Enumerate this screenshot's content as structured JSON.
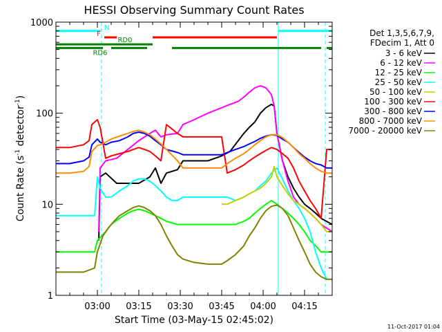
{
  "chart_data": {
    "type": "line",
    "title": "HESSI Observing Summary Count Rates",
    "xlabel": "Start Time (03-May-15 02:45:02)",
    "ylabel_main": "Count Rate (s",
    "ylabel_sup1": "-1",
    "ylabel_mid": " detector",
    "ylabel_sup2": "-1",
    "ylabel_end": ")",
    "y_scale": "log",
    "ylim": [
      1,
      1000
    ],
    "xlim_minutes": [
      0,
      100
    ],
    "x_ticks": [
      {
        "t": 15,
        "label": "03:00"
      },
      {
        "t": 30,
        "label": "03:15"
      },
      {
        "t": 45,
        "label": "03:30"
      },
      {
        "t": 60,
        "label": "03:45"
      },
      {
        "t": 75,
        "label": "04:00"
      },
      {
        "t": 90,
        "label": "04:15"
      }
    ],
    "y_ticks": [
      {
        "v": 1,
        "label": "1"
      },
      {
        "v": 10,
        "label": "10"
      },
      {
        "v": 100,
        "label": "100"
      },
      {
        "v": 1000,
        "label": "1000"
      }
    ],
    "legend_header": [
      "Det 1,3,5,6,7,9,",
      "FDecim 1, Att 0"
    ],
    "series": [
      {
        "name": "3 - 6 keV",
        "color": "#000000",
        "x": [
          0,
          15,
          15.5,
          16,
          18,
          22,
          30,
          34,
          36,
          38,
          40,
          44,
          46,
          50,
          55,
          60,
          63,
          66,
          68,
          70,
          72,
          74,
          76,
          78,
          79,
          80,
          82,
          84,
          86,
          88,
          90,
          92,
          94,
          96,
          100
        ],
        "y": [
          null,
          null,
          4,
          20,
          22,
          17,
          17,
          20,
          25,
          17,
          22,
          24,
          30,
          30,
          30,
          34,
          38,
          50,
          60,
          70,
          80,
          100,
          115,
          125,
          120,
          60,
          30,
          20,
          15,
          12,
          10,
          9,
          8,
          7,
          6
        ]
      },
      {
        "name": "6 - 12 keV",
        "color": "#ff00ff",
        "x": [
          0,
          15,
          15.5,
          16,
          18,
          22,
          30,
          34,
          36,
          38,
          40,
          44,
          46,
          50,
          55,
          60,
          63,
          66,
          68,
          70,
          72,
          74,
          76,
          78,
          79,
          80,
          82,
          84,
          86,
          88,
          90,
          92,
          94,
          96,
          100
        ],
        "y": [
          null,
          null,
          5,
          25,
          30,
          32,
          50,
          60,
          65,
          55,
          58,
          60,
          75,
          85,
          100,
          115,
          125,
          135,
          150,
          170,
          190,
          200,
          190,
          160,
          120,
          60,
          30,
          18,
          12,
          10,
          9,
          8,
          7,
          6,
          5
        ]
      },
      {
        "name": "12 - 25 keV",
        "color": "#00ff00",
        "x": [
          0,
          10,
          14,
          15,
          18,
          20,
          23,
          26,
          28,
          30,
          32,
          34,
          36,
          38,
          40,
          44,
          46,
          50,
          55,
          60,
          62,
          65,
          68,
          70,
          72,
          74,
          76,
          78,
          80,
          82,
          84,
          86,
          88,
          90,
          92,
          94,
          96,
          98,
          100
        ],
        "y": [
          3,
          3,
          3,
          4,
          5,
          6,
          7,
          8,
          8.5,
          8.8,
          8.5,
          8,
          7.5,
          7,
          6.5,
          6,
          6,
          6,
          6,
          6,
          6,
          6,
          6.5,
          7,
          8,
          9,
          10,
          11,
          10,
          9,
          8,
          7,
          6,
          5,
          4,
          3.5,
          3,
          3,
          3
        ]
      },
      {
        "name": "25 - 50 keV",
        "color": "#00ffff",
        "x": [
          0,
          5,
          10,
          14,
          15,
          16,
          18,
          20,
          23,
          26,
          28,
          30,
          32,
          34,
          36,
          38,
          40,
          42,
          44,
          46,
          50,
          55,
          60,
          62,
          65,
          68,
          70,
          72,
          74,
          76,
          78,
          80,
          82,
          84,
          86,
          88,
          90,
          92,
          94,
          96,
          98,
          100
        ],
        "y": [
          7.5,
          7.5,
          7.5,
          7.5,
          20,
          15,
          12,
          12,
          14,
          16,
          18,
          19,
          19,
          18,
          16,
          14,
          12,
          11,
          11,
          12,
          12,
          12,
          12,
          12,
          11,
          12,
          13,
          14,
          16,
          18,
          22,
          25,
          19,
          14,
          11,
          9,
          7,
          5,
          3,
          2,
          1.5,
          1.5
        ]
      },
      {
        "name": "50 - 100 keV",
        "color": "#cccc00",
        "x": [
          60,
          62,
          65,
          68,
          70,
          72,
          74,
          76,
          78,
          79,
          80,
          82,
          84,
          86,
          88,
          90,
          92,
          94,
          96,
          98,
          100
        ],
        "y": [
          10,
          10,
          11,
          12,
          13,
          14,
          15,
          17,
          20,
          26,
          20,
          16,
          13,
          11,
          10,
          9,
          8,
          7,
          6,
          5,
          5
        ]
      },
      {
        "name": "100 - 300 keV",
        "color": "#ff0000",
        "x": [
          0,
          5,
          10,
          12,
          13,
          15,
          16,
          18,
          20,
          23,
          26,
          28,
          30,
          32,
          34,
          36,
          38,
          40,
          44,
          46,
          50,
          55,
          60,
          62,
          65,
          68,
          70,
          72,
          74,
          76,
          78,
          80,
          82,
          84,
          86,
          88,
          90,
          92,
          94,
          96,
          98,
          100
        ],
        "y": [
          42,
          42,
          45,
          50,
          75,
          85,
          70,
          32,
          34,
          36,
          38,
          40,
          42,
          40,
          38,
          34,
          30,
          75,
          60,
          55,
          55,
          55,
          55,
          22,
          24,
          27,
          30,
          33,
          36,
          39,
          42,
          40,
          36,
          32,
          25,
          18,
          14,
          11,
          9,
          7,
          40,
          40
        ]
      },
      {
        "name": "300 - 800 keV",
        "color": "#0000ff",
        "x": [
          0,
          5,
          10,
          12,
          13,
          15,
          16,
          18,
          20,
          23,
          26,
          28,
          30,
          32,
          34,
          36,
          38,
          40,
          44,
          46,
          50,
          55,
          60,
          62,
          65,
          68,
          70,
          72,
          74,
          76,
          78,
          80,
          82,
          84,
          86,
          88,
          90,
          92,
          94,
          96,
          98,
          100
        ],
        "y": [
          28,
          28,
          30,
          33,
          45,
          52,
          48,
          45,
          48,
          50,
          55,
          60,
          62,
          60,
          56,
          50,
          45,
          40,
          37,
          35,
          35,
          35,
          35,
          37,
          40,
          43,
          46,
          49,
          53,
          56,
          58,
          57,
          52,
          48,
          42,
          37,
          33,
          30,
          28,
          27,
          25,
          25
        ]
      },
      {
        "name": "800 - 7000 keV",
        "color": "#ff8c00",
        "x": [
          0,
          5,
          10,
          12,
          13,
          15,
          16,
          18,
          20,
          23,
          26,
          28,
          30,
          32,
          34,
          36,
          38,
          40,
          44,
          46,
          50,
          55,
          60,
          62,
          65,
          68,
          70,
          72,
          74,
          76,
          78,
          80,
          82,
          84,
          86,
          88,
          90,
          92,
          94,
          96,
          98,
          100
        ],
        "y": [
          22,
          22,
          23,
          26,
          38,
          44,
          45,
          48,
          52,
          56,
          60,
          63,
          65,
          62,
          58,
          52,
          46,
          40,
          30,
          25,
          25,
          25,
          25,
          28,
          32,
          36,
          40,
          45,
          50,
          55,
          58,
          58,
          54,
          48,
          42,
          36,
          32,
          28,
          25,
          23,
          22,
          22
        ]
      },
      {
        "name": "7000 - 20000 keV",
        "color": "#808000",
        "x": [
          0,
          5,
          10,
          14,
          15,
          17,
          19,
          21,
          23,
          26,
          28,
          30,
          32,
          34,
          36,
          38,
          40,
          42,
          44,
          46,
          50,
          55,
          60,
          62,
          65,
          68,
          70,
          72,
          74,
          76,
          78,
          80,
          82,
          84,
          86,
          88,
          90,
          92,
          94,
          96,
          98,
          100
        ],
        "y": [
          1.8,
          1.8,
          1.8,
          2,
          3,
          4.5,
          5.5,
          6.5,
          7.5,
          8.5,
          9.2,
          9.6,
          9.2,
          8.5,
          7.5,
          6,
          4.5,
          3.5,
          2.8,
          2.5,
          2.3,
          2.2,
          2.2,
          2.4,
          2.8,
          3.5,
          4.5,
          5.5,
          7,
          8.5,
          9.5,
          9.8,
          9,
          7.5,
          5.5,
          4,
          3,
          2.2,
          1.8,
          1.6,
          1.5,
          1.5
        ]
      }
    ],
    "vertical_lines": [
      {
        "t": 16.5,
        "color": "#00ffff",
        "style": "dashed"
      },
      {
        "t": 80.5,
        "color": "#00ffff",
        "style": "solid"
      },
      {
        "t": 97.5,
        "color": "#00ffff",
        "style": "dashed"
      }
    ],
    "flag_bars": [
      {
        "label": "N",
        "color": "#00ffff",
        "y_value": 800,
        "segments": [
          [
            0,
            16
          ],
          [
            80.5,
            100
          ]
        ],
        "label_t": 18.5
      },
      {
        "label": "F",
        "color": "#ff0000",
        "y_value": 680,
        "segments": [
          [
            17.5,
            22
          ],
          [
            35,
            80
          ]
        ],
        "label_t": 15.5
      },
      {
        "label": "RD0",
        "color": "#008000",
        "y_value": 570,
        "segments": [
          [
            0,
            35
          ]
        ],
        "label_t": 25
      },
      {
        "label": "RD6",
        "color": "#008000",
        "y_value": 520,
        "segments": [
          [
            0,
            17
          ],
          [
            20,
            33
          ],
          [
            42,
            63
          ],
          [
            63,
            96
          ],
          [
            98,
            100
          ]
        ],
        "label_t": 16
      }
    ]
  },
  "footer": {
    "timestamp": "11-Oct-2017 01:04"
  }
}
